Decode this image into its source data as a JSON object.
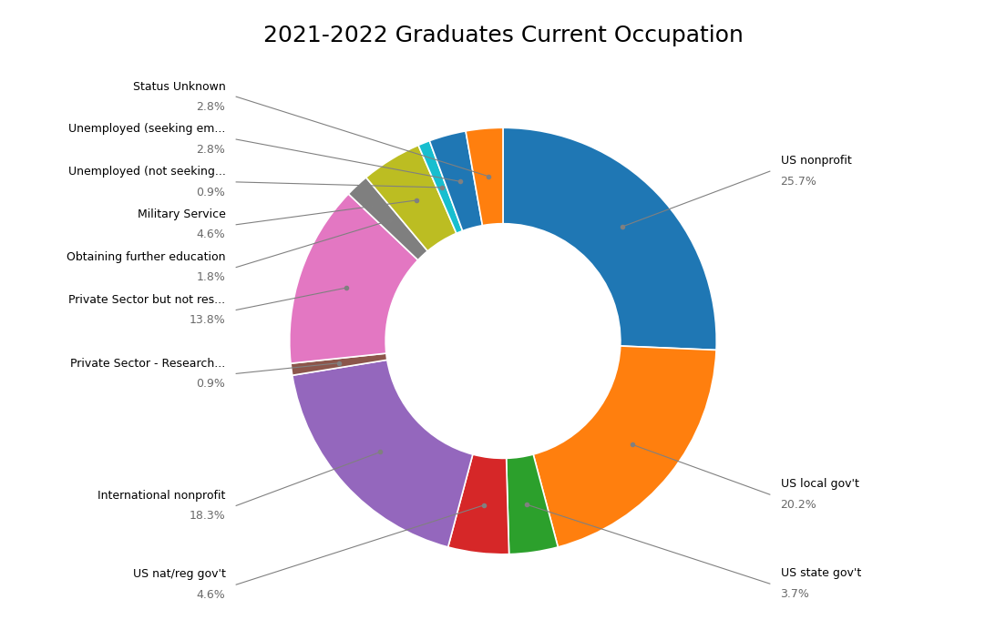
{
  "chart_data": {
    "type": "donut",
    "title": "2021-2022 Graduates Current Occupation",
    "categories": [
      "US nonprofit",
      "US local gov't",
      "US state gov't",
      "US nat/reg gov't",
      "International nonprofit",
      "Private Sector - Research...",
      "Private Sector but not res...",
      "Obtaining further education",
      "Military Service",
      "Unemployed (not seeking...",
      "Unemployed (seeking em...",
      "Status Unknown"
    ],
    "values": [
      25.7,
      20.2,
      3.7,
      4.6,
      18.3,
      0.9,
      13.8,
      1.8,
      4.6,
      0.9,
      2.8,
      2.8
    ],
    "value_labels": [
      "25.7%",
      "20.2%",
      "3.7%",
      "4.6%",
      "18.3%",
      "0.9%",
      "13.8%",
      "1.8%",
      "4.6%",
      "0.9%",
      "2.8%",
      "2.8%"
    ]
  }
}
